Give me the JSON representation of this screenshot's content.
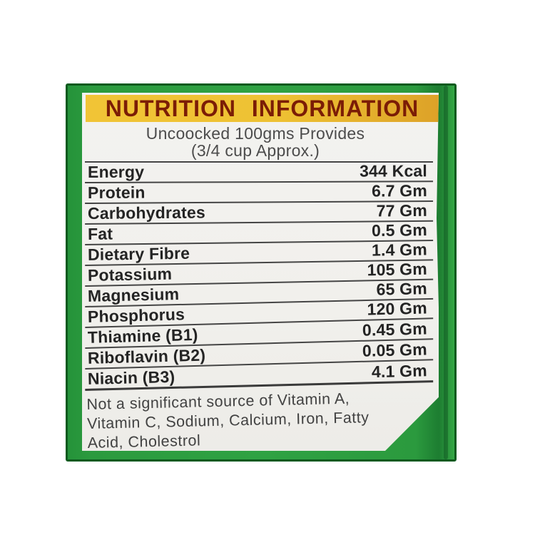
{
  "label": {
    "title": "NUTRITION INFORMATION",
    "subtitle": {
      "line1": "Uncoocked 100gms Provides",
      "line2": "(3/4 cup Approx.)"
    },
    "table": {
      "rows": [
        {
          "name": "Energy",
          "value": "344 Kcal"
        },
        {
          "name": "Protein",
          "value": "6.7 Gm"
        },
        {
          "name": "Carbohydrates",
          "value": "77 Gm"
        },
        {
          "name": "Fat",
          "value": "0.5 Gm"
        },
        {
          "name": "Dietary Fibre",
          "value": "1.4 Gm"
        },
        {
          "name": "Potassium",
          "value": "105 Gm"
        },
        {
          "name": "Magnesium",
          "value": "65 Gm"
        },
        {
          "name": "Phosphorus",
          "value": "120 Gm"
        },
        {
          "name": "Thiamine (B1)",
          "value": "0.45 Gm"
        },
        {
          "name": "Riboflavin (B2)",
          "value": "0.05 Gm"
        },
        {
          "name": "Niacin (B3)",
          "value": "4.1 Gm"
        }
      ]
    },
    "footnote": {
      "line1": "Not a significant source of Vitamin A,",
      "line2": "Vitamin C, Sodium, Calcium, Iron, Fatty",
      "line3": "Acid, Cholestrol",
      "full_text": "Not a significant source of Vitamin A, Vitamin C, Sodium, Calcium, Iron, Fatty Acid, Cholestrol"
    },
    "colors": {
      "package_green": "#2b9a3e",
      "package_border_green": "#0a5a1e",
      "header_band_yellow": "#eec133",
      "header_band_yellow_dark": "#dda228",
      "title_maroon": "#7b1d06",
      "label_offwhite": "#f1f0ec",
      "table_text": "#242424",
      "separator_gray": "#454545"
    }
  }
}
